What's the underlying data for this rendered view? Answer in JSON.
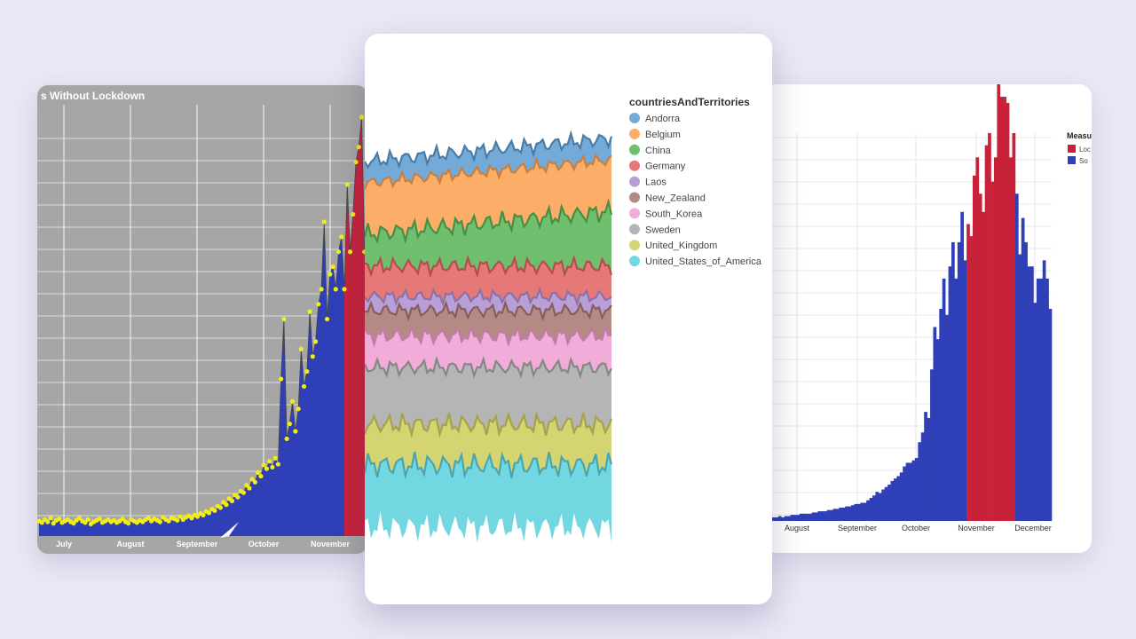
{
  "chart_data": [
    {
      "type": "area",
      "title": "s Without Lockdown",
      "x_tick_labels": [
        "July",
        "August",
        "September",
        "October",
        "November"
      ],
      "grid": true,
      "background": "#a6a6a6",
      "colors": {
        "area": "#2e3fb8",
        "lockdown": "#c8223a",
        "points": "#f2ee12",
        "line": "#444444"
      },
      "series": [
        {
          "values": [
            20,
            18,
            22,
            19,
            24,
            17,
            21,
            23,
            18,
            20,
            22,
            19,
            17,
            21,
            24,
            20,
            18,
            22,
            16,
            19,
            21,
            23,
            18,
            20,
            22,
            19,
            21,
            18,
            20,
            23,
            19,
            17,
            22,
            20,
            18,
            21,
            19,
            22,
            24,
            20,
            23,
            21,
            19,
            25,
            22,
            20,
            24,
            23,
            21,
            26,
            22,
            25,
            27,
            24,
            28,
            26,
            30,
            28,
            33,
            31,
            36,
            34,
            40,
            38,
            45,
            42,
            50,
            47,
            55,
            52,
            60,
            58,
            68,
            64,
            76,
            72,
            85,
            80,
            95,
            90,
            100,
            92,
            104,
            96,
            210,
            290,
            130,
            150,
            180,
            140,
            170,
            250,
            200,
            220,
            300,
            240,
            260,
            310,
            330,
            420,
            290,
            350,
            360,
            330,
            380,
            400,
            330,
            470,
            380,
            430,
            500,
            520,
            560,
            380,
            440
          ],
          "lockdown_from_index": 106
        }
      ]
    },
    {
      "type": "area",
      "legend_title": "countriesAndTerritories",
      "legend_position": "right",
      "series": [
        {
          "name": "Andorra",
          "color": "#5b9bd0"
        },
        {
          "name": "Belgium",
          "color": "#fba04f"
        },
        {
          "name": "China",
          "color": "#56b456"
        },
        {
          "name": "Germany",
          "color": "#e26060"
        },
        {
          "name": "Laos",
          "color": "#ad8ed0"
        },
        {
          "name": "New_Zealand",
          "color": "#a6776f"
        },
        {
          "name": "South_Korea",
          "color": "#ee9ed2"
        },
        {
          "name": "Sweden",
          "color": "#a8a8a8"
        },
        {
          "name": "United_Kingdom",
          "color": "#cdcd5a"
        },
        {
          "name": "United_States_of_America",
          "color": "#5bd0dd"
        }
      ]
    },
    {
      "type": "bar",
      "legend_title": "Measu",
      "legend_items": [
        "Loc",
        "So"
      ],
      "x_tick_labels": [
        "August",
        "September",
        "October",
        "November",
        "December"
      ],
      "grid": true,
      "colors": {
        "normal": "#2e3fb8",
        "lockdown": "#c8223a"
      },
      "values": [
        3,
        3,
        4,
        3,
        4,
        4,
        5,
        5,
        5,
        6,
        6,
        6,
        6,
        7,
        7,
        8,
        8,
        8,
        9,
        9,
        10,
        10,
        11,
        11,
        12,
        12,
        13,
        14,
        14,
        15,
        15,
        17,
        19,
        21,
        24,
        23,
        26,
        28,
        30,
        33,
        35,
        37,
        40,
        45,
        48,
        48,
        50,
        52,
        65,
        73,
        90,
        85,
        125,
        160,
        150,
        175,
        200,
        170,
        210,
        230,
        200,
        230,
        255,
        215,
        245,
        235,
        285,
        300,
        270,
        255,
        310,
        320,
        280,
        300,
        390,
        350,
        350,
        345,
        300,
        320,
        270,
        220,
        250,
        230,
        210,
        210,
        180,
        200,
        200,
        215,
        200,
        175
      ],
      "lockdown_from_index": 64,
      "lockdown_to_index": 80
    }
  ]
}
